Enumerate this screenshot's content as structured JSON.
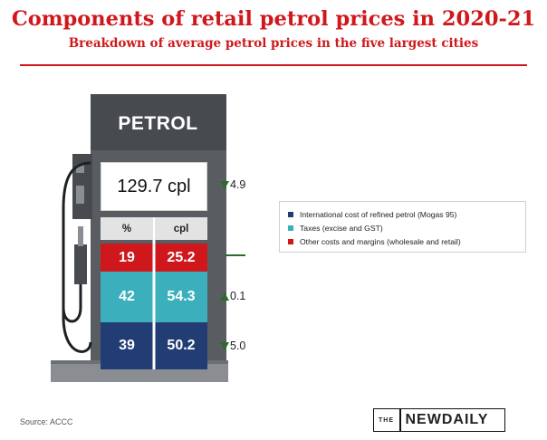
{
  "title": "Components of retail petrol prices in 2020-21",
  "subtitle": "Breakdown of average petrol prices in the five largest cities",
  "source": "Source: ACCC",
  "logo": {
    "the": "THE",
    "name": "NEWDAILY"
  },
  "colors": {
    "accent": "#d0181c",
    "international": "#213d73",
    "taxes": "#3bb0bc",
    "other": "#d0181c",
    "change_arrow": "#2d6a2d"
  },
  "chart_data": {
    "type": "table",
    "title": "Components of retail petrol prices in 2020-21",
    "subtitle": "Breakdown of average petrol prices in the five largest cities",
    "pump_label": "PETROL",
    "total": {
      "value": "129.7 cpl",
      "change_direction": "down",
      "change": "4.9"
    },
    "columns": [
      "%",
      "cpl"
    ],
    "rows": [
      {
        "component": "Other costs and margins (wholesale and retail)",
        "percent": "19",
        "cpl": "25.2",
        "change_direction": "none",
        "change": ""
      },
      {
        "component": "Taxes (excise and GST)",
        "percent": "42",
        "cpl": "54.3",
        "change_direction": "up",
        "change": "0.1"
      },
      {
        "component": "International cost of refined petrol (Mogas 95)",
        "percent": "39",
        "cpl": "50.2",
        "change_direction": "down",
        "change": "5.0"
      }
    ],
    "legend": [
      {
        "label": "International cost of refined petrol (Mogas 95)",
        "color": "#213d73"
      },
      {
        "label": "Taxes (excise and GST)",
        "color": "#3bb0bc"
      },
      {
        "label": "Other costs and margins (wholesale and retail)",
        "color": "#d0181c"
      }
    ]
  }
}
